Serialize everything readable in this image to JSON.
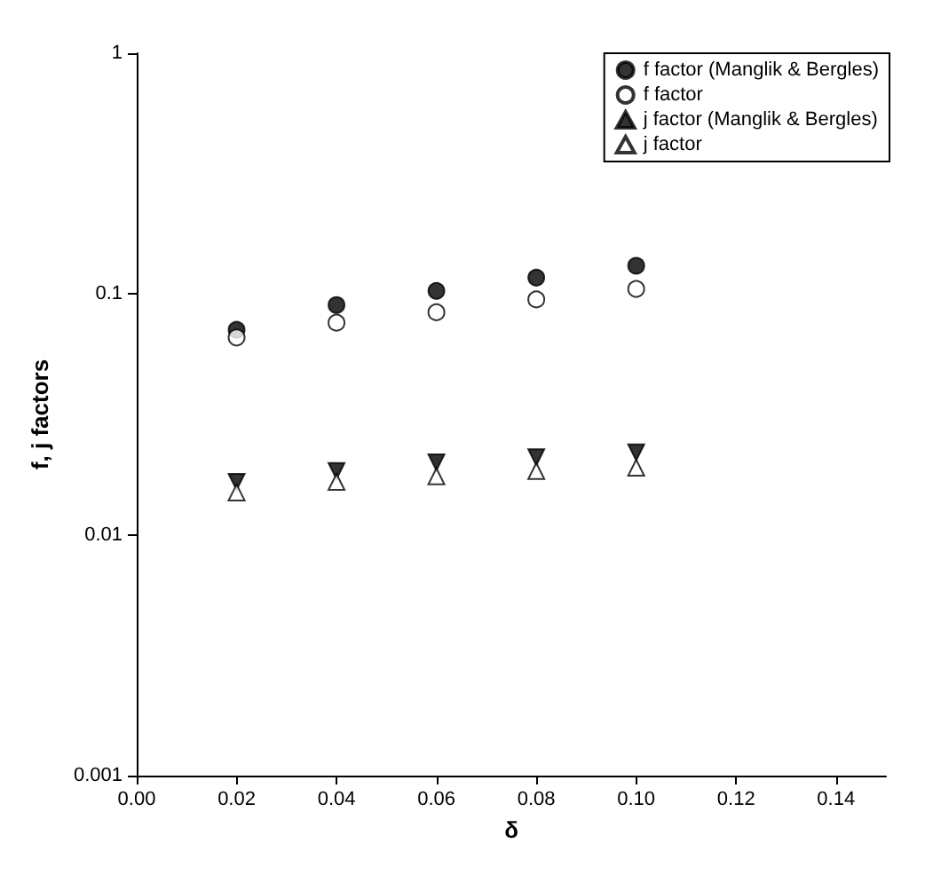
{
  "chart_data": {
    "type": "scatter",
    "xlabel": "δ",
    "ylabel": "f, j factors",
    "x": [
      0.02,
      0.04,
      0.06,
      0.08,
      0.1
    ],
    "series": [
      {
        "name": "f factor (Manglik & Bergles)",
        "color": "#000000",
        "marker": "circle",
        "values": [
          0.071,
          0.09,
          0.103,
          0.117,
          0.131
        ]
      },
      {
        "name": "f factor",
        "color": "#ffffff",
        "marker": "circle",
        "values": [
          0.066,
          0.076,
          0.084,
          0.095,
          0.105
        ]
      },
      {
        "name": "j factor (Manglik & Bergles)",
        "color": "#000000",
        "marker": "triangle-down",
        "values": [
          0.0166,
          0.0184,
          0.02,
          0.021,
          0.022
        ]
      },
      {
        "name": "j factor",
        "color": "#ffffff",
        "marker": "triangle",
        "values": [
          0.015,
          0.0166,
          0.0175,
          0.0184,
          0.019
        ]
      }
    ],
    "log": "y",
    "xlim": [
      0,
      0.15
    ],
    "ylim": [
      0.001,
      1
    ],
    "xticks": [
      {
        "value": 0,
        "label": "0.00"
      },
      {
        "value": 0.02,
        "label": "0.02"
      },
      {
        "value": 0.04,
        "label": "0.04"
      },
      {
        "value": 0.06,
        "label": "0.06"
      },
      {
        "value": 0.08,
        "label": "0.08"
      },
      {
        "value": 0.1,
        "label": "0.10"
      },
      {
        "value": 0.12,
        "label": "0.12"
      },
      {
        "value": 0.14,
        "label": "0.14"
      }
    ],
    "yticks": [
      0.001,
      0.01,
      0.1,
      1
    ],
    "grid": false,
    "legend": "top right"
  }
}
